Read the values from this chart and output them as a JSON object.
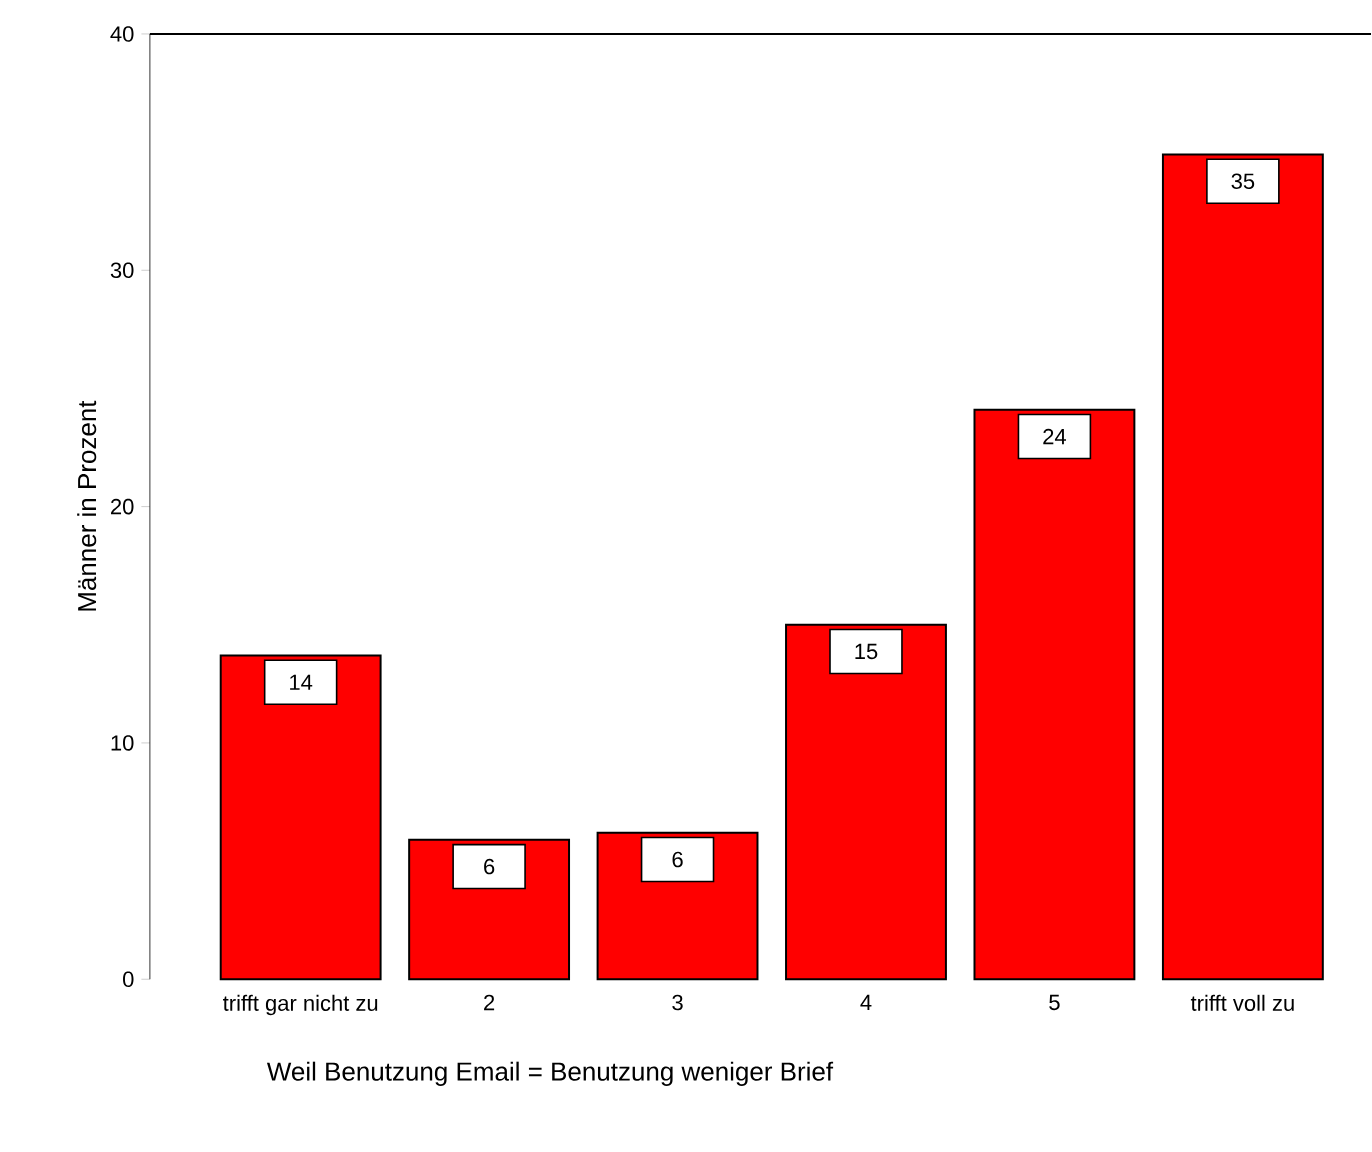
{
  "chart_data": {
    "type": "bar",
    "xlabel": "Weil Benutzung Email = Benutzung weniger Brief",
    "ylabel": "Männer in Prozent",
    "categories": [
      "trifft gar nicht zu",
      "2",
      "3",
      "4",
      "5",
      "trifft voll zu"
    ],
    "values": [
      13.7,
      5.9,
      6.2,
      15.0,
      24.1,
      34.9
    ],
    "value_labels": [
      "14",
      "6",
      "6",
      "15",
      "24",
      "35"
    ],
    "color": "#ff0000",
    "ylim": [
      0,
      40
    ],
    "yticks": [
      0,
      10,
      20,
      30,
      40
    ],
    "grid": false
  }
}
